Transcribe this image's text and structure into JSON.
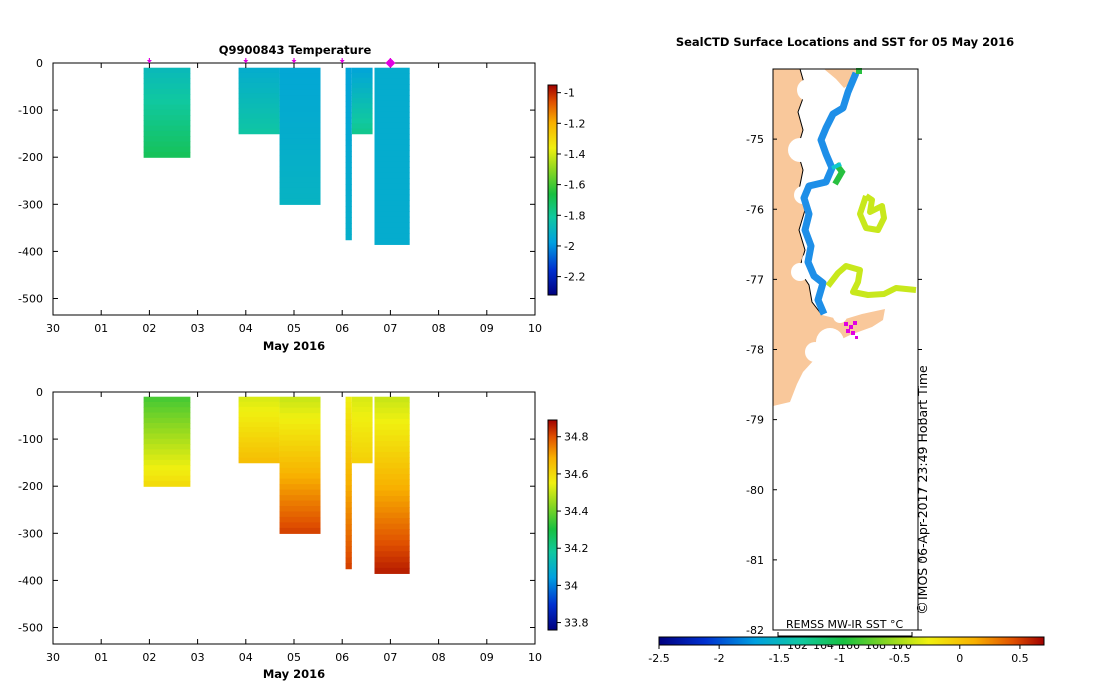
{
  "chart_data": [
    {
      "type": "heatmap",
      "title": "Q9900843  Temperature",
      "xlabel": "May 2016",
      "ylabel": "",
      "x_ticks": [
        "30",
        "01",
        "02",
        "03",
        "04",
        "05",
        "06",
        "07",
        "08",
        "09",
        "10"
      ],
      "y_ticks": [
        0,
        -100,
        -200,
        -300,
        -400,
        -500
      ],
      "ylim": [
        -535,
        0
      ],
      "xlim": [
        -1.0,
        9.0
      ],
      "colorbar": {
        "min": -2.32,
        "max": -0.95,
        "ticks": [
          -1,
          -1.2,
          -1.4,
          -1.6,
          -1.8,
          -2,
          -2.2
        ]
      },
      "profile_markers_day": [
        1.0,
        3.0,
        4.0,
        5.0,
        6.0
      ],
      "current_marker_day": 6.0,
      "profiles": [
        {
          "start": 0.88,
          "end": 1.85,
          "depth": 200,
          "surface": -1.88,
          "deep": -1.7
        },
        {
          "start": 2.85,
          "end": 3.7,
          "depth": 150,
          "surface": -1.93,
          "deep": -1.82
        },
        {
          "start": 3.7,
          "end": 4.55,
          "depth": 300,
          "surface": -1.95,
          "deep": -1.9
        },
        {
          "start": 5.07,
          "end": 5.2,
          "depth": 375,
          "surface": -1.96,
          "deep": -1.92
        },
        {
          "start": 5.2,
          "end": 5.63,
          "depth": 150,
          "surface": -1.96,
          "deep": -1.78
        },
        {
          "start": 5.67,
          "end": 6.4,
          "depth": 385,
          "surface": -1.93,
          "deep": -1.93
        }
      ]
    },
    {
      "type": "heatmap",
      "title": "",
      "xlabel": "May 2016",
      "ylabel": "",
      "x_ticks": [
        "30",
        "01",
        "02",
        "03",
        "04",
        "05",
        "06",
        "07",
        "08",
        "09",
        "10"
      ],
      "y_ticks": [
        0,
        -100,
        -200,
        -300,
        -400,
        -500
      ],
      "ylim": [
        -535,
        0
      ],
      "xlim": [
        -1.0,
        9.0
      ],
      "colorbar": {
        "min": 33.76,
        "max": 34.89,
        "ticks": [
          34.8,
          34.6,
          34.4,
          34.2,
          34,
          33.8
        ]
      },
      "profiles": [
        {
          "start": 0.88,
          "end": 1.85,
          "depth": 200,
          "surface": 34.35,
          "deep": 34.6
        },
        {
          "start": 2.85,
          "end": 3.7,
          "depth": 150,
          "surface": 34.52,
          "deep": 34.66
        },
        {
          "start": 3.7,
          "end": 4.55,
          "depth": 300,
          "surface": 34.5,
          "deep": 34.82
        },
        {
          "start": 5.07,
          "end": 5.2,
          "depth": 375,
          "surface": 34.55,
          "deep": 34.82
        },
        {
          "start": 5.2,
          "end": 5.63,
          "depth": 150,
          "surface": 34.52,
          "deep": 34.62
        },
        {
          "start": 5.67,
          "end": 6.4,
          "depth": 385,
          "surface": 34.5,
          "deep": 34.86
        }
      ]
    },
    {
      "type": "map",
      "title": "SealCTD Surface Locations and SST for 05 May 2016",
      "y_ticks": [
        -75,
        -76,
        -77,
        -78,
        -79,
        -80,
        -81,
        -82
      ],
      "ylim": [
        -82.0,
        -74.0
      ],
      "colorbar": {
        "label": "REMSS MW-IR SST °C",
        "min": -2.5,
        "max": 0.7,
        "ticks": [
          -2.5,
          -2,
          -1.5,
          -1,
          -0.5,
          0,
          0.5
        ]
      },
      "inset_labels": [
        "162",
        "164",
        "166",
        "168",
        "170"
      ],
      "credit": "IMOS 06-Apr-2017 23:49 Hobart Time",
      "credit_symbol": "©"
    }
  ],
  "colors": {
    "land": "#f9c89b",
    "ice": "#ffffff",
    "track_blue": "#1e8fe8",
    "track_green": "#28c040",
    "track_yellow": "#c8e81c",
    "magenta": "#e000e0"
  }
}
